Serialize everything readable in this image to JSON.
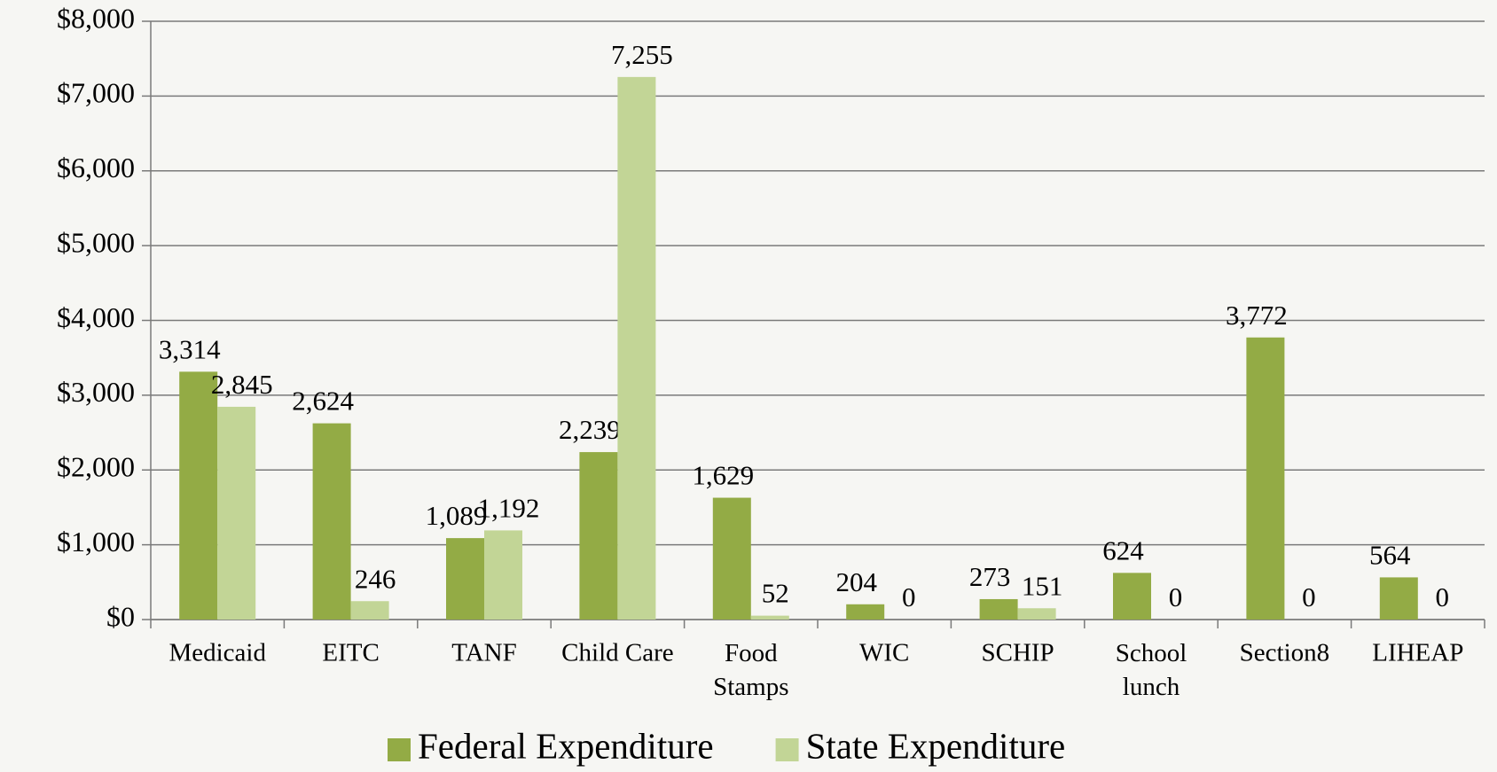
{
  "chart_data": {
    "type": "bar",
    "categories": [
      "Medicaid",
      "EITC",
      "TANF",
      "Child Care",
      "Food Stamps",
      "WIC",
      "SCHIP",
      "School lunch",
      "Section8",
      "LIHEAP"
    ],
    "series": [
      {
        "name": "Federal Expenditure",
        "color": "#93ab45",
        "values": [
          3314,
          2624,
          1089,
          2239,
          1629,
          204,
          273,
          624,
          3772,
          564
        ],
        "value_labels": [
          "3,314",
          "2,624",
          "1,089",
          "2,239",
          "1,629",
          "204",
          "273",
          "624",
          "3,772",
          "564"
        ]
      },
      {
        "name": "State Expenditure",
        "color": "#c2d596",
        "values": [
          2845,
          246,
          1192,
          7255,
          52,
          0,
          151,
          0,
          0,
          0
        ],
        "value_labels": [
          "2,845",
          "246",
          "1,192",
          "7,255",
          "52",
          "0",
          "151",
          "0",
          "0",
          "0"
        ]
      }
    ],
    "ylim": [
      0,
      8000
    ],
    "yticks": [
      {
        "value": 0,
        "label": "$0"
      },
      {
        "value": 1000,
        "label": "$1,000"
      },
      {
        "value": 2000,
        "label": "$2,000"
      },
      {
        "value": 3000,
        "label": "$3,000"
      },
      {
        "value": 4000,
        "label": "$4,000"
      },
      {
        "value": 5000,
        "label": "$5,000"
      },
      {
        "value": 6000,
        "label": "$6,000"
      },
      {
        "value": 7000,
        "label": "$7,000"
      },
      {
        "value": 8000,
        "label": "$8,000"
      }
    ],
    "grid": true,
    "legend": "bottom"
  }
}
